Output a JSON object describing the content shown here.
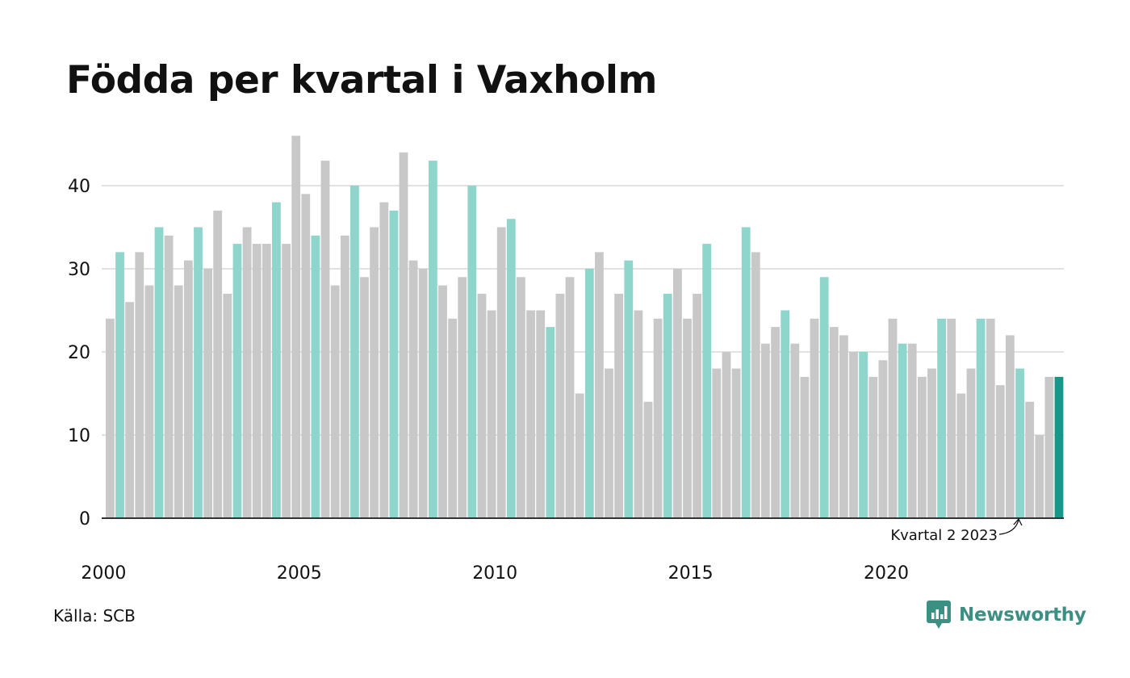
{
  "title": "Födda per kvartal i Vaxholm",
  "source": "Källa: SCB",
  "brand": "Newsworthy",
  "colors": {
    "default": "#c8c8c8",
    "q2": "#8ed5cb",
    "latest": "#17968a",
    "grid": "#e2e2e2",
    "axis": "#333333",
    "brand": "#3b8f83"
  },
  "chart_data": {
    "type": "bar",
    "title": "Födda per kvartal i Vaxholm",
    "xlabel": "",
    "ylabel": "",
    "ylim": [
      0,
      47
    ],
    "yticks": [
      0,
      10,
      20,
      30,
      40
    ],
    "xtick_labels": [
      "2000",
      "2005",
      "2010",
      "2015",
      "2020"
    ],
    "grid": true,
    "highlight": "Q2 bars in teal, latest quarter in dark teal",
    "annotation": "Kvartal 2 2023",
    "series": [
      {
        "year": "2000",
        "values": [
          24,
          32,
          26,
          32
        ]
      },
      {
        "year": "2001",
        "values": [
          28,
          35,
          34,
          28
        ]
      },
      {
        "year": "2002",
        "values": [
          31,
          35,
          30,
          37
        ]
      },
      {
        "year": "2003",
        "values": [
          27,
          33,
          35,
          33
        ]
      },
      {
        "year": "2004",
        "values": [
          33,
          38,
          33,
          46
        ]
      },
      {
        "year": "2005",
        "values": [
          39,
          34,
          43,
          28
        ]
      },
      {
        "year": "2006",
        "values": [
          34,
          40,
          29,
          35
        ]
      },
      {
        "year": "2007",
        "values": [
          38,
          37,
          44,
          31
        ]
      },
      {
        "year": "2008",
        "values": [
          30,
          43,
          28,
          24
        ]
      },
      {
        "year": "2009",
        "values": [
          29,
          40,
          27,
          25
        ]
      },
      {
        "year": "2010",
        "values": [
          35,
          36,
          29,
          25
        ]
      },
      {
        "year": "2011",
        "values": [
          25,
          23,
          27,
          29
        ]
      },
      {
        "year": "2012",
        "values": [
          15,
          30,
          32,
          18
        ]
      },
      {
        "year": "2013",
        "values": [
          27,
          31,
          25,
          14
        ]
      },
      {
        "year": "2014",
        "values": [
          24,
          27,
          30,
          24
        ]
      },
      {
        "year": "2015",
        "values": [
          27,
          33,
          18,
          20
        ]
      },
      {
        "year": "2016",
        "values": [
          18,
          35,
          32,
          21
        ]
      },
      {
        "year": "2017",
        "values": [
          23,
          25,
          21,
          17
        ]
      },
      {
        "year": "2018",
        "values": [
          24,
          29,
          23,
          22
        ]
      },
      {
        "year": "2019",
        "values": [
          20,
          20,
          17,
          19
        ]
      },
      {
        "year": "2020",
        "values": [
          24,
          21,
          21,
          17
        ]
      },
      {
        "year": "2021",
        "values": [
          18,
          24,
          24,
          15
        ]
      },
      {
        "year": "2022",
        "values": [
          18,
          24,
          24,
          16
        ]
      },
      {
        "year": "2023",
        "values": [
          22,
          18,
          14,
          10
        ]
      },
      {
        "year": "2024",
        "values": [
          17,
          17
        ]
      }
    ]
  }
}
